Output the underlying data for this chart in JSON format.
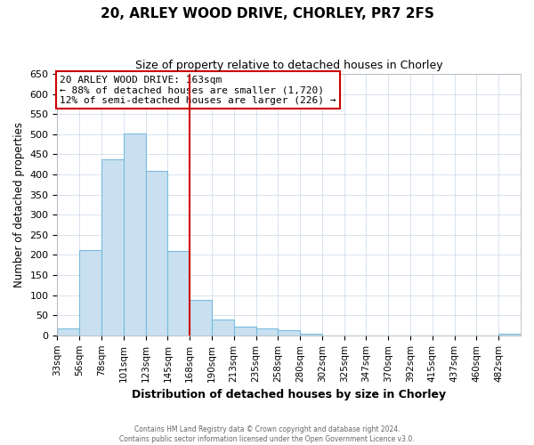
{
  "title": "20, ARLEY WOOD DRIVE, CHORLEY, PR7 2FS",
  "subtitle": "Size of property relative to detached houses in Chorley",
  "xlabel": "Distribution of detached houses by size in Chorley",
  "ylabel": "Number of detached properties",
  "footer_line1": "Contains HM Land Registry data © Crown copyright and database right 2024.",
  "footer_line2": "Contains public sector information licensed under the Open Government Licence v3.0.",
  "bin_labels": [
    "33sqm",
    "56sqm",
    "78sqm",
    "101sqm",
    "123sqm",
    "145sqm",
    "168sqm",
    "190sqm",
    "213sqm",
    "235sqm",
    "258sqm",
    "280sqm",
    "302sqm",
    "325sqm",
    "347sqm",
    "370sqm",
    "392sqm",
    "415sqm",
    "437sqm",
    "460sqm",
    "482sqm"
  ],
  "bar_heights": [
    18,
    212,
    437,
    502,
    408,
    210,
    88,
    40,
    22,
    18,
    13,
    5,
    0,
    0,
    0,
    0,
    0,
    0,
    0,
    0,
    5
  ],
  "bar_color": "#c8e0f0",
  "bar_edge_color": "#7abbe0",
  "grid_color": "#c8d8e8",
  "vline_color": "#cc0000",
  "ylim": [
    0,
    650
  ],
  "yticks": [
    0,
    50,
    100,
    150,
    200,
    250,
    300,
    350,
    400,
    450,
    500,
    550,
    600,
    650
  ],
  "annotation_title": "20 ARLEY WOOD DRIVE: 163sqm",
  "annotation_line2": "← 88% of detached houses are smaller (1,720)",
  "annotation_line3": "12% of semi-detached houses are larger (226) →",
  "annotation_box_color": "#cc0000",
  "bin_width": 23,
  "n_bins": 21,
  "vline_bin_index": 6
}
